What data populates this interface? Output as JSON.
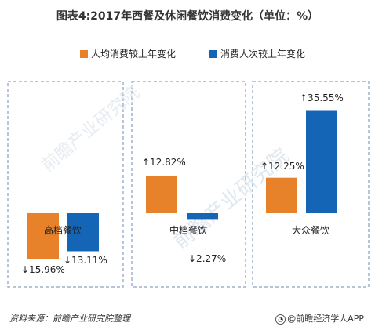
{
  "title": "图表4:2017年西餐及休闲餐饮消费变化（单位：%）",
  "source": "资料来源：前瞻产业研究院整理",
  "brand": "@前瞻经济学人APP",
  "watermark": "前瞻产业研究院",
  "colors": {
    "orange": "#E8822A",
    "blue": "#1565B7",
    "border": "#9DB3CC"
  },
  "chart_data": {
    "type": "bar",
    "categories": [
      "高档餐饮",
      "中档餐饮",
      "大众餐饮"
    ],
    "series": [
      {
        "name": "人均消费较上年变化",
        "color": "#E8822A",
        "values": [
          -15.96,
          12.82,
          12.25
        ],
        "labels": [
          "↓15.96%",
          "↑12.82%",
          "↑12.25%"
        ]
      },
      {
        "name": "消费人次较上年变化",
        "color": "#1565B7",
        "values": [
          -13.11,
          -2.27,
          35.55
        ],
        "labels": [
          "↓13.11%",
          "↓2.27%",
          "↑35.55%"
        ]
      }
    ],
    "ylim": [
      -18,
      38
    ],
    "grid": false,
    "legend": "top-center"
  }
}
